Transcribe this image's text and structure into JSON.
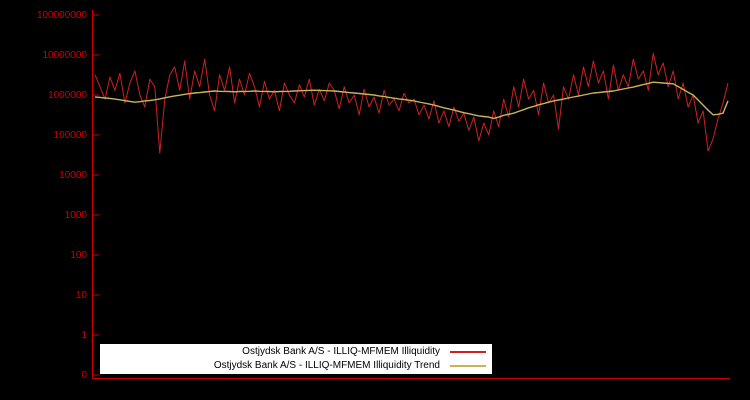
{
  "page": {
    "background": "#000000"
  },
  "axis": {
    "text_color": "#cc0000",
    "line_color": "#cc0000",
    "y_tick_labels": [
      "100000000",
      "10000000",
      "1000000",
      "100000",
      "10000",
      "1000",
      "100",
      "10",
      "1",
      "0"
    ]
  },
  "legend": {
    "background": "#ffffff",
    "text_color": "#000000",
    "items": [
      {
        "label": "Ostjydsk Bank A/S - ILLIQ-MFMEM Illiquidity"
      },
      {
        "label": "Ostjydsk Bank A/S - ILLIQ-MFMEM Illiquidity Trend"
      }
    ]
  },
  "chart_data": {
    "type": "line",
    "title": "",
    "xlabel": "",
    "ylabel": "",
    "y_scale": "log",
    "y_range": [
      1,
      100000000
    ],
    "grid": false,
    "legend_position": "bottom-center",
    "series": [
      {
        "name": "Ostjydsk Bank A/S - ILLIQ-MFMEM Illiquidity",
        "color": "#cc2222",
        "values": [
          3200000.0,
          1600000.0,
          790000.0,
          2800000.0,
          1300000.0,
          3500000.0,
          630000.0,
          2000000.0,
          4000000.0,
          1000000.0,
          500000.0,
          2500000.0,
          1600000.0,
          35000.0,
          790000.0,
          3200000.0,
          5000000.0,
          1300000.0,
          7100000.0,
          790000.0,
          4000000.0,
          1600000.0,
          7900000.0,
          1000000.0,
          400000.0,
          3200000.0,
          1300000.0,
          5000000.0,
          630000.0,
          2500000.0,
          1000000.0,
          3500000.0,
          1600000.0,
          500000.0,
          2200000.0,
          790000.0,
          1300000.0,
          400000.0,
          2000000.0,
          1000000.0,
          630000.0,
          1800000.0,
          890000.0,
          2500000.0,
          560000.0,
          1400000.0,
          710000.0,
          2000000.0,
          1300000.0,
          450000.0,
          1600000.0,
          630000.0,
          1000000.0,
          320000.0,
          1400000.0,
          500000.0,
          890000.0,
          350000.0,
          1300000.0,
          560000.0,
          790000.0,
          400000.0,
          1100000.0,
          630000.0,
          790000.0,
          320000.0,
          560000.0,
          250000.0,
          710000.0,
          200000.0,
          400000.0,
          160000.0,
          500000.0,
          220000.0,
          350000.0,
          130000.0,
          280000.0,
          71000.0,
          200000.0,
          100000.0,
          400000.0,
          160000.0,
          790000.0,
          280000.0,
          1600000.0,
          500000.0,
          2500000.0,
          790000.0,
          1300000.0,
          320000.0,
          2000000.0,
          630000.0,
          1000000.0,
          140000.0,
          1600000.0,
          790000.0,
          3200000.0,
          1000000.0,
          5000000.0,
          1600000.0,
          7100000.0,
          2000000.0,
          4000000.0,
          790000.0,
          5600000.0,
          1300000.0,
          3200000.0,
          1600000.0,
          7900000.0,
          2500000.0,
          4000000.0,
          1300000.0,
          11000000.0,
          3200000.0,
          6300000.0,
          1600000.0,
          4000000.0,
          790000.0,
          2000000.0,
          500000.0,
          1000000.0,
          200000.0,
          400000.0,
          40000.0,
          79000.0,
          250000.0,
          630000.0,
          2000000.0
        ]
      },
      {
        "name": "Ostjydsk Bank A/S - ILLIQ-MFMEM Illiquidity Trend",
        "color": "#c9b458",
        "values": [
          890000.0,
          870000.0,
          840000.0,
          820000.0,
          790000.0,
          760000.0,
          720000.0,
          690000.0,
          660000.0,
          680000.0,
          710000.0,
          730000.0,
          760000.0,
          800000.0,
          850000.0,
          900000.0,
          950000.0,
          990000.0,
          1040000.0,
          1080000.0,
          1120000.0,
          1150000.0,
          1190000.0,
          1220000.0,
          1260000.0,
          1240000.0,
          1230000.0,
          1220000.0,
          1200000.0,
          1220000.0,
          1230000.0,
          1240000.0,
          1260000.0,
          1240000.0,
          1230000.0,
          1220000.0,
          1200000.0,
          1220000.0,
          1230000.0,
          1240000.0,
          1260000.0,
          1270000.0,
          1290000.0,
          1300000.0,
          1320000.0,
          1300000.0,
          1290000.0,
          1270000.0,
          1260000.0,
          1220000.0,
          1190000.0,
          1150000.0,
          1120000.0,
          1090000.0,
          1060000.0,
          1030000.0,
          1000000.0,
          950000.0,
          910000.0,
          870000.0,
          830000.0,
          800000.0,
          770000.0,
          740000.0,
          710000.0,
          670000.0,
          630000.0,
          600000.0,
          560000.0,
          520000.0,
          480000.0,
          450000.0,
          420000.0,
          390000.0,
          360000.0,
          340000.0,
          320000.0,
          300000.0,
          290000.0,
          280000.0,
          260000.0,
          280000.0,
          310000.0,
          330000.0,
          350000.0,
          390000.0,
          430000.0,
          480000.0,
          520000.0,
          570000.0,
          610000.0,
          660000.0,
          710000.0,
          750000.0,
          790000.0,
          840000.0,
          890000.0,
          940000.0,
          1000000.0,
          1060000.0,
          1120000.0,
          1150000.0,
          1190000.0,
          1220000.0,
          1260000.0,
          1330000.0,
          1410000.0,
          1500000.0,
          1580000.0,
          1700000.0,
          1820000.0,
          1950000.0,
          2090000.0,
          2040000.0,
          2000000.0,
          1950000.0,
          1910000.0,
          1620000.0,
          1380000.0,
          1170000.0,
          1000000.0,
          750000.0,
          560000.0,
          420000.0,
          320000.0,
          330000.0,
          350000.0,
          710000.0
        ]
      }
    ]
  }
}
